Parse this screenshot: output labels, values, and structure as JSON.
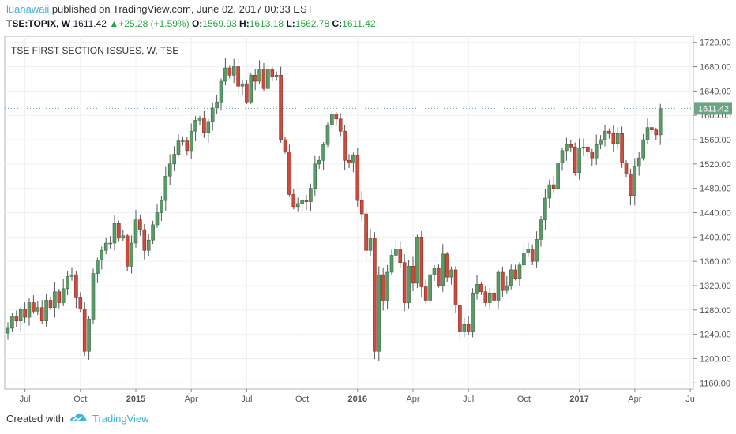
{
  "header": {
    "user": "luahawaii",
    "published": "published on TradingView.com, June 02, 2017 00:33 EST"
  },
  "ohlc": {
    "symbol": "TSE:TOPIX, W",
    "last": "1611.42",
    "change": "+25.28 (+1.59%)",
    "o_label": "O:",
    "o": "1569.93",
    "h_label": "H:",
    "h": "1613.18",
    "l_label": "L:",
    "l": "1562.78",
    "c_label": "C:",
    "c": "1611.42"
  },
  "footer": {
    "created_with": "Created with",
    "brand": "TradingView"
  },
  "colors": {
    "up": "#5b9a68",
    "down": "#cd4b3e",
    "up_border": "#3a6b45",
    "down_border": "#8a2e23",
    "grid": "#eef0f3",
    "accent": "#3bb3e4",
    "last_price_bg": "#6ba583"
  },
  "chart_data": {
    "type": "candlestick",
    "title": "TSE FIRST SECTION ISSUES, W, TSE",
    "ylim": [
      1150,
      1730
    ],
    "y_ticks": [
      1160,
      1200,
      1240,
      1280,
      1320,
      1360,
      1400,
      1440,
      1480,
      1520,
      1560,
      1600,
      1640,
      1680,
      1720
    ],
    "y_tick_labels": [
      "1160.00",
      "1200.00",
      "1240.00",
      "1280.00",
      "1320.00",
      "1360.00",
      "1400.00",
      "1440.00",
      "1480.00",
      "1520.00",
      "1560.00",
      "1600.00",
      "1640.00",
      "1680.00",
      "1720.00"
    ],
    "x_ticks": [
      {
        "label": "Jul",
        "index": 4,
        "bold": false
      },
      {
        "label": "Oct",
        "index": 17,
        "bold": false
      },
      {
        "label": "2015",
        "index": 30,
        "bold": true
      },
      {
        "label": "Apr",
        "index": 43,
        "bold": false
      },
      {
        "label": "Jul",
        "index": 56,
        "bold": false
      },
      {
        "label": "Oct",
        "index": 69,
        "bold": false
      },
      {
        "label": "2016",
        "index": 82,
        "bold": true
      },
      {
        "label": "Apr",
        "index": 95,
        "bold": false
      },
      {
        "label": "Jul",
        "index": 108,
        "bold": false
      },
      {
        "label": "Oct",
        "index": 121,
        "bold": false
      },
      {
        "label": "2017",
        "index": 134,
        "bold": true
      },
      {
        "label": "Apr",
        "index": 147,
        "bold": false
      },
      {
        "label": "Ju",
        "index": 160,
        "bold": false
      }
    ],
    "last_price": "1611.42",
    "closes": [
      1250,
      1270,
      1262,
      1281,
      1268,
      1292,
      1278,
      1284,
      1262,
      1296,
      1284,
      1310,
      1292,
      1315,
      1335,
      1338,
      1300,
      1282,
      1212,
      1265,
      1340,
      1362,
      1378,
      1390,
      1390,
      1422,
      1398,
      1402,
      1352,
      1390,
      1428,
      1412,
      1378,
      1395,
      1420,
      1440,
      1460,
      1500,
      1520,
      1536,
      1558,
      1558,
      1542,
      1574,
      1592,
      1596,
      1572,
      1590,
      1612,
      1622,
      1656,
      1678,
      1666,
      1680,
      1648,
      1652,
      1622,
      1666,
      1656,
      1676,
      1644,
      1676,
      1664,
      1666,
      1560,
      1540,
      1470,
      1450,
      1455,
      1460,
      1458,
      1480,
      1520,
      1526,
      1552,
      1584,
      1602,
      1594,
      1574,
      1526,
      1522,
      1534,
      1460,
      1438,
      1378,
      1398,
      1212,
      1338,
      1296,
      1342,
      1370,
      1380,
      1358,
      1292,
      1352,
      1324,
      1400,
      1318,
      1296,
      1338,
      1348,
      1320,
      1372,
      1334,
      1346,
      1288,
      1244,
      1256,
      1244,
      1308,
      1322,
      1310,
      1292,
      1308,
      1296,
      1342,
      1312,
      1320,
      1346,
      1332,
      1354,
      1374,
      1380,
      1360,
      1396,
      1428,
      1464,
      1486,
      1480,
      1522,
      1542,
      1552,
      1548,
      1506,
      1546,
      1548,
      1540,
      1530,
      1552,
      1560,
      1574,
      1570,
      1554,
      1570,
      1522,
      1504,
      1468,
      1516,
      1530,
      1560,
      1580,
      1576,
      1568,
      1611
    ]
  }
}
